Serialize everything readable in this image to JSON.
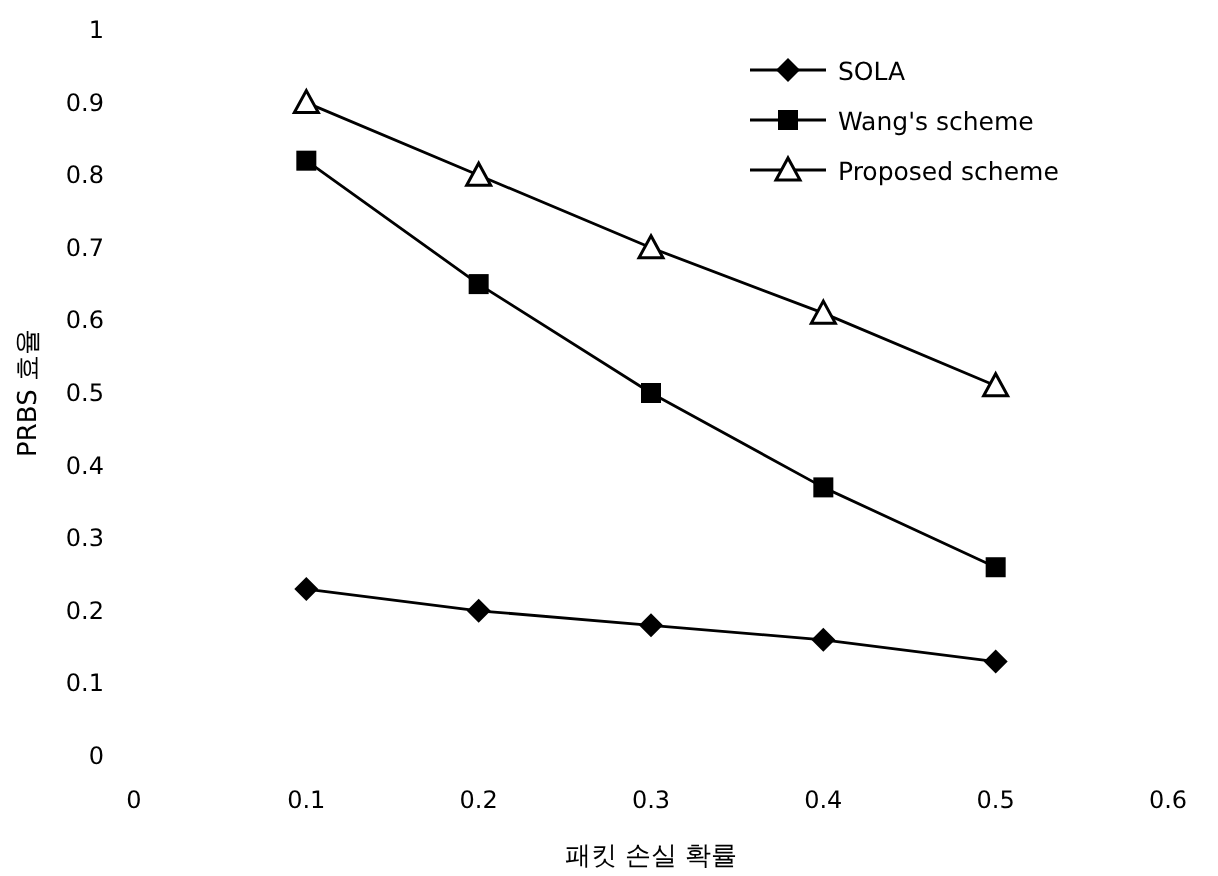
{
  "chart_data": {
    "type": "line",
    "xlabel": "패킷 손실 확률",
    "ylabel": "PRBS 효율",
    "x": [
      0.1,
      0.2,
      0.3,
      0.4,
      0.5
    ],
    "series": [
      {
        "name": "SOLA",
        "color": "#000000",
        "marker": "diamond",
        "values": [
          0.23,
          0.2,
          0.18,
          0.16,
          0.13
        ]
      },
      {
        "name": "Wang's scheme",
        "color": "#000000",
        "marker": "square",
        "values": [
          0.82,
          0.65,
          0.5,
          0.37,
          0.26
        ]
      },
      {
        "name": "Proposed scheme",
        "color": "#000000",
        "marker": "triangle",
        "values": [
          0.9,
          0.8,
          0.7,
          0.61,
          0.51
        ]
      }
    ],
    "xlim": [
      0,
      0.6
    ],
    "xticks": [
      0,
      0.1,
      0.2,
      0.3,
      0.4,
      0.5,
      0.6
    ],
    "ylim": [
      0,
      1
    ],
    "yticks": [
      0,
      0.1,
      0.2,
      0.3,
      0.4,
      0.5,
      0.6,
      0.7,
      0.8,
      0.9,
      1
    ],
    "grid": false,
    "legend": "top right",
    "line_style": "solid"
  }
}
